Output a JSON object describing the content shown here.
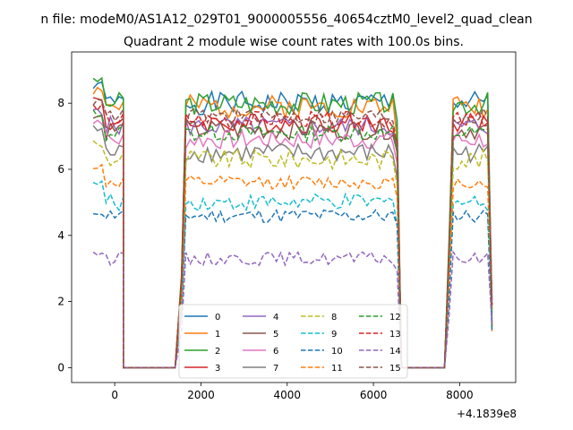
{
  "chart_data": {
    "type": "line",
    "suptitle": "n file: modeM0/AS1A12_029T01_9000005556_40654cztM0_level2_quad_clean",
    "title": "Quadrant 2 module wise count rates with 100.0s bins.",
    "xlabel": "",
    "ylabel": "",
    "offset_label": "+4.1839e8",
    "xlim": [
      -1000,
      9300
    ],
    "ylim": [
      -0.45,
      9.55
    ],
    "xticks": [
      0,
      2000,
      4000,
      6000,
      8000
    ],
    "xtick_labels": [
      "0",
      "2000",
      "4000",
      "6000",
      "8000"
    ],
    "yticks": [
      0,
      2,
      4,
      6,
      8
    ],
    "ytick_labels": [
      "0",
      "2",
      "4",
      "6",
      "8"
    ],
    "grid": false,
    "legend_position": "lower-center",
    "legend_columns": 4,
    "segments": [
      {
        "x_start": -500,
        "count": 8
      },
      {
        "x_start": 200,
        "count": 13
      },
      {
        "x_start": 1550,
        "count": 51
      },
      {
        "x_start": 6650,
        "count": 11
      },
      {
        "x_start": 7750,
        "count": 11
      }
    ],
    "series": [
      {
        "name": "0",
        "color": "#1f77b4",
        "dash": "solid",
        "level": 8.0,
        "edge": 8.5,
        "noise": 0.35,
        "seed": 1
      },
      {
        "name": "1",
        "color": "#ff7f0e",
        "dash": "solid",
        "level": 7.9,
        "edge": 8.4,
        "noise": 0.35,
        "seed": 2
      },
      {
        "name": "2",
        "color": "#2ca02c",
        "dash": "solid",
        "level": 8.0,
        "edge": 8.6,
        "noise": 0.35,
        "seed": 3
      },
      {
        "name": "3",
        "color": "#d62728",
        "dash": "solid",
        "level": 7.4,
        "edge": 8.1,
        "noise": 0.3,
        "seed": 4
      },
      {
        "name": "4",
        "color": "#9467bd",
        "dash": "solid",
        "level": 7.3,
        "edge": 7.8,
        "noise": 0.3,
        "seed": 5
      },
      {
        "name": "5",
        "color": "#8c564b",
        "dash": "solid",
        "level": 7.2,
        "edge": 7.6,
        "noise": 0.3,
        "seed": 6
      },
      {
        "name": "6",
        "color": "#e377c2",
        "dash": "solid",
        "level": 6.9,
        "edge": 7.5,
        "noise": 0.3,
        "seed": 7
      },
      {
        "name": "7",
        "color": "#7f7f7f",
        "dash": "solid",
        "level": 6.5,
        "edge": 7.2,
        "noise": 0.3,
        "seed": 8
      },
      {
        "name": "8",
        "color": "#bcbd22",
        "dash": "dashed",
        "level": 6.3,
        "edge": 6.8,
        "noise": 0.3,
        "seed": 9
      },
      {
        "name": "9",
        "color": "#17becf",
        "dash": "dashed",
        "level": 5.0,
        "edge": 5.6,
        "noise": 0.25,
        "seed": 10
      },
      {
        "name": "10",
        "color": "#1f77b4",
        "dash": "dashed",
        "level": 4.6,
        "edge": 4.7,
        "noise": 0.22,
        "seed": 11
      },
      {
        "name": "11",
        "color": "#ff7f0e",
        "dash": "dashed",
        "level": 5.6,
        "edge": 6.1,
        "noise": 0.2,
        "seed": 12
      },
      {
        "name": "12",
        "color": "#2ca02c",
        "dash": "dashed",
        "level": 7.1,
        "edge": 7.7,
        "noise": 0.25,
        "seed": 13
      },
      {
        "name": "13",
        "color": "#d62728",
        "dash": "dashed",
        "level": 7.5,
        "edge": 7.9,
        "noise": 0.25,
        "seed": 14
      },
      {
        "name": "14",
        "color": "#9467bd",
        "dash": "dashed",
        "level": 3.3,
        "edge": 3.5,
        "noise": 0.2,
        "seed": 15
      },
      {
        "name": "15",
        "color": "#8c564b",
        "dash": "dashed",
        "level": 7.6,
        "edge": 8.0,
        "noise": 0.25,
        "seed": 16
      }
    ]
  }
}
